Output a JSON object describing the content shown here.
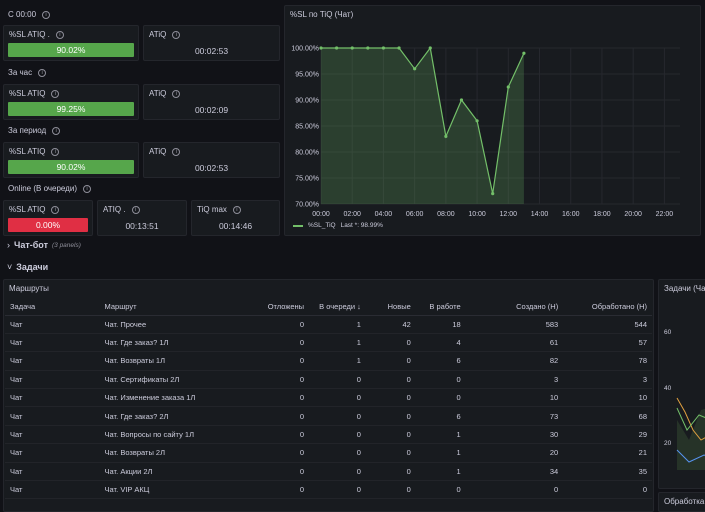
{
  "sections": {
    "s1": "С 00:00",
    "s2": "За час",
    "s3": "За период",
    "s4": "Online (В очереди)"
  },
  "stats": {
    "r1_sl_label": "%SL ATIQ .",
    "r1_sl_value": "90.02%",
    "r1_atiq_label": "ATiQ",
    "r1_atiq_value": "00:02:53",
    "r2_sl_label": "%SL ATIQ",
    "r2_sl_value": "99.25%",
    "r2_atiq_label": "ATiQ",
    "r2_atiq_value": "00:02:09",
    "r3_sl_label": "%SL ATIQ",
    "r3_sl_value": "90.02%",
    "r3_atiq_label": "ATiQ",
    "r3_atiq_value": "00:02:53",
    "r4_sl_label": "%SL ATIQ",
    "r4_sl_value": "0.00%",
    "r4_atiq_label": "ATIQ .",
    "r4_atiq_value": "00:13:51",
    "r4_tiq_label": "TiQ max",
    "r4_tiq_value": "00:14:46"
  },
  "chart_panel": {
    "title": "%SL по TiQ (Чат)",
    "legend_series": "%SL_TiQ",
    "legend_last": "Last *: 98.99%"
  },
  "chart_data": {
    "type": "area",
    "title": "%SL по TiQ (Чат)",
    "y_ticks": [
      "100.00%",
      "95.00%",
      "90.00%",
      "85.00%",
      "80.00%",
      "75.00%",
      "70.00%"
    ],
    "x_ticks": [
      "00:00",
      "02:00",
      "04:00",
      "06:00",
      "08:00",
      "10:00",
      "12:00",
      "14:00",
      "16:00",
      "18:00",
      "20:00",
      "22:00"
    ],
    "ylim": [
      70,
      100
    ],
    "xlim_hours": [
      0,
      23
    ],
    "series": [
      {
        "name": "%SL_TiQ",
        "color": "#73bf69",
        "x": [
          0,
          1,
          2,
          3,
          4,
          5,
          6,
          7,
          8,
          9,
          10,
          11,
          12,
          13
        ],
        "y": [
          100,
          100,
          100,
          100,
          100,
          100,
          96,
          100,
          83,
          90,
          86,
          72,
          92.5,
          98.99
        ]
      }
    ]
  },
  "rows": {
    "chatbot": "Чат-бот",
    "chatbot_count": "(3 panels)",
    "tasks": "Задачи"
  },
  "routes": {
    "title": "Маршруты",
    "columns": [
      "Задача",
      "Маршрут",
      "Отложены",
      "В очереди",
      "Новые",
      "В работе",
      "Создано (Н)",
      "Обработано (Н)"
    ],
    "rows": [
      [
        "Чат",
        "Чат. Прочее",
        "0",
        "1",
        "42",
        "18",
        "583",
        "544"
      ],
      [
        "Чат",
        "Чат. Где заказ? 1Л",
        "0",
        "1",
        "0",
        "4",
        "61",
        "57"
      ],
      [
        "Чат",
        "Чат. Возвраты 1Л",
        "0",
        "1",
        "0",
        "6",
        "82",
        "78"
      ],
      [
        "Чат",
        "Чат. Сертификаты 2Л",
        "0",
        "0",
        "0",
        "0",
        "3",
        "3"
      ],
      [
        "Чат",
        "Чат. Изменение заказа 1Л",
        "0",
        "0",
        "0",
        "0",
        "10",
        "10"
      ],
      [
        "Чат",
        "Чат. Где заказ? 2Л",
        "0",
        "0",
        "0",
        "6",
        "73",
        "68"
      ],
      [
        "Чат",
        "Чат. Вопросы по сайту 1Л",
        "0",
        "0",
        "0",
        "1",
        "30",
        "29"
      ],
      [
        "Чат",
        "Чат. Возвраты 2Л",
        "0",
        "0",
        "0",
        "1",
        "20",
        "21"
      ],
      [
        "Чат",
        "Чат. Акции 2Л",
        "0",
        "0",
        "0",
        "1",
        "34",
        "35"
      ],
      [
        "Чат",
        "Чат. VIP АКЦ",
        "0",
        "0",
        "0",
        "0",
        "0",
        "0"
      ]
    ]
  },
  "side_panel": {
    "title": "Задачи (Чат",
    "y_tick_top": "60",
    "y_tick_2": "40",
    "y_tick_3": "20",
    "bottom_title": "Обработка"
  }
}
